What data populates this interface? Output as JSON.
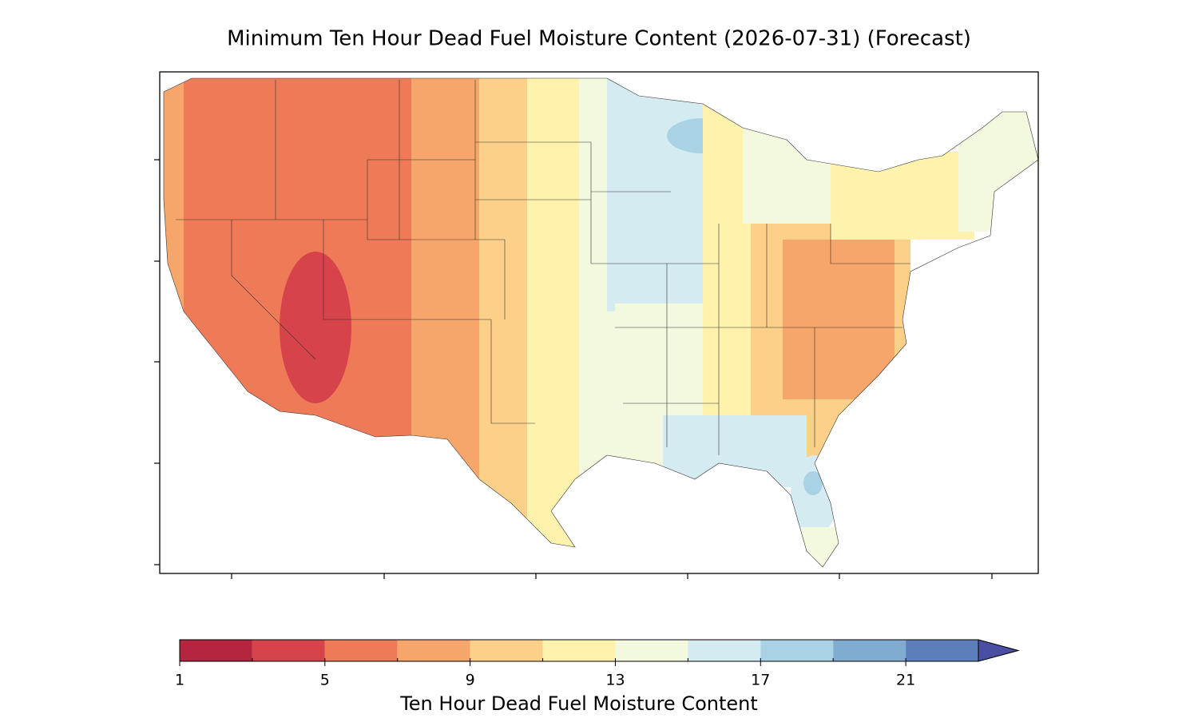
{
  "title": "Minimum Ten Hour Dead Fuel Moisture Content (2026-07-31) (Forecast)",
  "colorbar": {
    "label": "Ten Hour Dead Fuel Moisture Content",
    "levels": [
      1,
      3,
      5,
      7,
      9,
      11,
      13,
      15,
      17,
      19,
      21,
      23
    ],
    "colors": [
      "#b5253f",
      "#d6434a",
      "#ef7a58",
      "#f7a66b",
      "#fdd08a",
      "#fef2ad",
      "#f3f9df",
      "#d4ebf2",
      "#a9d2e5",
      "#80acd1",
      "#5c7fbc"
    ],
    "extend": "max",
    "extend_color": "#4a4fa3",
    "ticks": [
      1,
      5,
      9,
      13,
      17,
      21
    ]
  }
}
